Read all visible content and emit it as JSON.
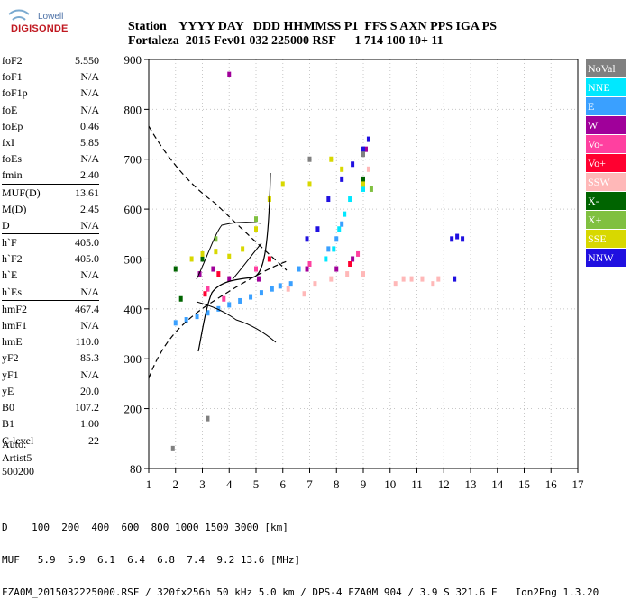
{
  "logo": {
    "line1": "Lowell",
    "line2": "DIGISONDE"
  },
  "header": {
    "row1": "Station    YYYY DAY   DDD HHMMSS P1  FFS S AXN PPS IGA PS",
    "row2": "Fortaleza  2015 Fev01 032 225000 RSF      1 714 100 10+ 11"
  },
  "params_group1": [
    {
      "label": "foF2",
      "value": "5.550"
    },
    {
      "label": "foF1",
      "value": "N/A"
    },
    {
      "label": "foF1p",
      "value": "N/A"
    },
    {
      "label": "foE",
      "value": "N/A"
    },
    {
      "label": "foEp",
      "value": "0.46"
    },
    {
      "label": "fxI",
      "value": "5.85"
    },
    {
      "label": "foEs",
      "value": "N/A"
    },
    {
      "label": "fmin",
      "value": "2.40"
    }
  ],
  "params_group2": [
    {
      "label": "MUF(D)",
      "value": "13.61"
    },
    {
      "label": "M(D)",
      "value": "2.45"
    },
    {
      "label": "D",
      "value": "N/A"
    }
  ],
  "params_group3": [
    {
      "label": "h`F",
      "value": "405.0"
    },
    {
      "label": "h`F2",
      "value": "405.0"
    },
    {
      "label": "h`E",
      "value": "N/A"
    },
    {
      "label": "h`Es",
      "value": "N/A"
    }
  ],
  "params_group4": [
    {
      "label": "hmF2",
      "value": "467.4"
    },
    {
      "label": "hmF1",
      "value": "N/A"
    },
    {
      "label": "hmE",
      "value": "110.0"
    },
    {
      "label": "yF2",
      "value": "85.3"
    },
    {
      "label": "yF1",
      "value": "N/A"
    },
    {
      "label": "yE",
      "value": "20.0"
    },
    {
      "label": "B0",
      "value": "107.2"
    },
    {
      "label": "B1",
      "value": "1.00"
    }
  ],
  "params_group5": [
    {
      "label": "C-level",
      "value": "22"
    }
  ],
  "autoscale": {
    "line1": "Auto:",
    "line2": "Artist5",
    "line3": "500200"
  },
  "legend": [
    {
      "label": "NoVal",
      "color": "#808080"
    },
    {
      "label": "NNE",
      "color": "#00e8ff"
    },
    {
      "label": "E",
      "color": "#3aa0ff"
    },
    {
      "label": "W",
      "color": "#a0009a"
    },
    {
      "label": "Vo-",
      "color": "#ff40a0"
    },
    {
      "label": "Vo+",
      "color": "#ff0030"
    },
    {
      "label": "SSW",
      "color": "#ffb8b8"
    },
    {
      "label": "X-",
      "color": "#006400"
    },
    {
      "label": "X+",
      "color": "#80c040"
    },
    {
      "label": "SSE",
      "color": "#d8d800"
    },
    {
      "label": "NNW",
      "color": "#2010e0"
    }
  ],
  "footer": {
    "d_row": "D    100  200  400  600  800 1000 1500 3000 [km]",
    "muf_row": "MUF   5.9  5.9  6.1  6.4  6.8  7.4  9.2 13.6 [MHz]",
    "file_row": "FZA0M_2015032225000.RSF / 320fx256h 50 kHz 5.0 km / DPS-4 FZA0M 904 / 3.9 S 321.6 E   Ion2Png 1.3.20"
  },
  "chart_data": {
    "type": "scatter",
    "xlim": [
      1,
      17
    ],
    "ylim": [
      80,
      900
    ],
    "x_ticks": [
      1,
      2,
      3,
      4,
      5,
      6,
      7,
      8,
      9,
      10,
      11,
      12,
      13,
      14,
      15,
      16,
      17
    ],
    "y_ticks": [
      80,
      200,
      300,
      400,
      500,
      600,
      700,
      800,
      900
    ],
    "grid": true,
    "series": [
      {
        "name": "E",
        "color": "#3aa0ff",
        "points": [
          [
            2.0,
            372
          ],
          [
            2.4,
            378
          ],
          [
            2.8,
            385
          ],
          [
            3.2,
            392
          ],
          [
            3.6,
            400
          ],
          [
            4.0,
            408
          ],
          [
            4.4,
            416
          ],
          [
            4.8,
            424
          ],
          [
            5.2,
            432
          ],
          [
            5.6,
            440
          ],
          [
            5.9,
            446
          ],
          [
            6.3,
            450
          ],
          [
            6.6,
            480
          ],
          [
            7.7,
            520
          ],
          [
            8.0,
            540
          ],
          [
            8.2,
            570
          ]
        ]
      },
      {
        "name": "NNE",
        "color": "#00e8ff",
        "points": [
          [
            7.6,
            500
          ],
          [
            7.9,
            520
          ],
          [
            8.1,
            560
          ],
          [
            8.3,
            590
          ],
          [
            8.5,
            620
          ],
          [
            9.0,
            640
          ]
        ]
      },
      {
        "name": "SSW",
        "color": "#ffb8b8",
        "points": [
          [
            6.2,
            440
          ],
          [
            6.8,
            430
          ],
          [
            7.2,
            450
          ],
          [
            7.8,
            460
          ],
          [
            8.4,
            470
          ],
          [
            9.0,
            470
          ],
          [
            9.2,
            680
          ],
          [
            10.2,
            450
          ],
          [
            10.5,
            460
          ],
          [
            10.8,
            460
          ],
          [
            11.2,
            460
          ],
          [
            11.6,
            450
          ],
          [
            11.8,
            460
          ]
        ]
      },
      {
        "name": "W",
        "color": "#a0009a",
        "points": [
          [
            2.9,
            470
          ],
          [
            3.4,
            480
          ],
          [
            4.0,
            460
          ],
          [
            5.1,
            460
          ],
          [
            6.9,
            480
          ],
          [
            8.0,
            480
          ],
          [
            8.6,
            500
          ],
          [
            9.1,
            720
          ],
          [
            4.0,
            870
          ]
        ]
      },
      {
        "name": "Vo-",
        "color": "#ff40a0",
        "points": [
          [
            3.2,
            440
          ],
          [
            3.8,
            420
          ],
          [
            5.0,
            480
          ],
          [
            7.0,
            490
          ],
          [
            8.8,
            510
          ]
        ]
      },
      {
        "name": "Vo+",
        "color": "#ff0030",
        "points": [
          [
            3.1,
            430
          ],
          [
            3.6,
            470
          ],
          [
            5.5,
            500
          ],
          [
            8.5,
            490
          ]
        ]
      },
      {
        "name": "X-",
        "color": "#006400",
        "points": [
          [
            2.0,
            480
          ],
          [
            2.2,
            420
          ],
          [
            3.0,
            500
          ],
          [
            9.0,
            660
          ]
        ]
      },
      {
        "name": "X+",
        "color": "#80c040",
        "points": [
          [
            3.5,
            540
          ],
          [
            5.0,
            580
          ],
          [
            9.3,
            640
          ]
        ]
      },
      {
        "name": "SSE",
        "color": "#d8d800",
        "points": [
          [
            2.6,
            500
          ],
          [
            3.0,
            510
          ],
          [
            3.5,
            515
          ],
          [
            4.0,
            505
          ],
          [
            4.5,
            520
          ],
          [
            5.0,
            560
          ],
          [
            5.5,
            620
          ],
          [
            6.0,
            650
          ],
          [
            7.0,
            650
          ],
          [
            7.8,
            700
          ],
          [
            8.2,
            680
          ],
          [
            9.0,
            650
          ]
        ]
      },
      {
        "name": "NNW",
        "color": "#2010e0",
        "points": [
          [
            6.9,
            540
          ],
          [
            7.3,
            560
          ],
          [
            7.7,
            620
          ],
          [
            8.2,
            660
          ],
          [
            8.6,
            690
          ],
          [
            9.0,
            720
          ],
          [
            9.2,
            740
          ],
          [
            12.3,
            540
          ],
          [
            12.5,
            545
          ],
          [
            12.7,
            540
          ],
          [
            12.4,
            460
          ]
        ]
      },
      {
        "name": "NoVal",
        "color": "#808080",
        "points": [
          [
            1.9,
            120
          ],
          [
            3.2,
            180
          ],
          [
            7.0,
            700
          ],
          [
            9.0,
            710
          ]
        ]
      }
    ]
  }
}
